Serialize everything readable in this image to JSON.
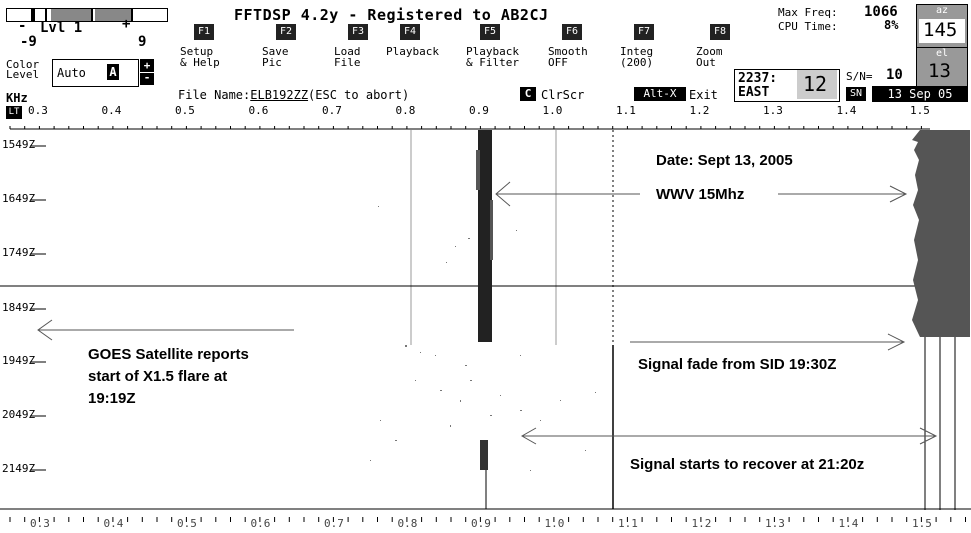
{
  "app_title": "FFTDSP 4.2y - Registered to AB2CJ",
  "level": {
    "minus_label": "-",
    "plus_label": "+",
    "name": "Lvl 1",
    "min": "-9",
    "max": "9"
  },
  "color_level": {
    "label_line1": "Color",
    "label_line2": "Level",
    "mode": "Auto",
    "letter": "A",
    "up": "+",
    "down": "-"
  },
  "function_keys": [
    {
      "key": "F1",
      "line1": "Setup",
      "line2": "& Help"
    },
    {
      "key": "F2",
      "line1": "Save",
      "line2": "Pic"
    },
    {
      "key": "F3",
      "line1": "Load",
      "line2": "File"
    },
    {
      "key": "F4",
      "line1": "Playback",
      "line2": ""
    },
    {
      "key": "F5",
      "line1": "Playback",
      "line2": "& Filter"
    },
    {
      "key": "F6",
      "line1": "Smooth",
      "line2": "OFF"
    },
    {
      "key": "F7",
      "line1": "Integ",
      "line2": "(200)"
    },
    {
      "key": "F8",
      "line1": "Zoom",
      "line2": "Out"
    }
  ],
  "file_name": {
    "label": "File Name:",
    "value": "ELB192ZZ",
    "hint": "(ESC to abort)"
  },
  "clear_screen": {
    "key": "C",
    "label": "ClrScr"
  },
  "exit": {
    "key": "Alt-X",
    "label": "Exit"
  },
  "status": {
    "max_freq_label": "Max Freq:",
    "max_freq_value": "1066",
    "cpu_label": "CPU Time:",
    "cpu_value": "8%",
    "az_label": "az",
    "az_value": "145",
    "el_label": "el",
    "el_value": "13",
    "location_code": "2237:",
    "location_dir": "EAST",
    "location_num": "12",
    "sn_label": "S/N=",
    "sn_value": "10",
    "sn_button": "SN",
    "date": "13 Sep 05"
  },
  "axis": {
    "unit": "KHz",
    "lt_button": "LT",
    "ticks": [
      "0.3",
      "0.4",
      "0.5",
      "0.6",
      "0.7",
      "0.8",
      "0.9",
      "1.0",
      "1.1",
      "1.2",
      "1.3",
      "1.4",
      "1.5"
    ],
    "bottom_ticks": [
      "0.3",
      "0.4",
      "0.5",
      "0.6",
      "0.7",
      "0.8",
      "0.9",
      "1.0",
      "1.1",
      "1.2",
      "1.3",
      "1.4",
      "1.5"
    ]
  },
  "time_labels": [
    "1549Z",
    "1649Z",
    "1749Z",
    "1849Z",
    "1949Z",
    "2049Z",
    "2149Z"
  ],
  "annotations": {
    "date": "Date: Sept 13, 2005",
    "wwv": "WWV 15Mhz",
    "goes_line1": "GOES Satellite reports",
    "goes_line2": "start of X1.5 flare at",
    "goes_line3": "19:19Z",
    "fade": "Signal fade from SID 19:30Z",
    "recover": "Signal starts to recover at 21:20z"
  }
}
